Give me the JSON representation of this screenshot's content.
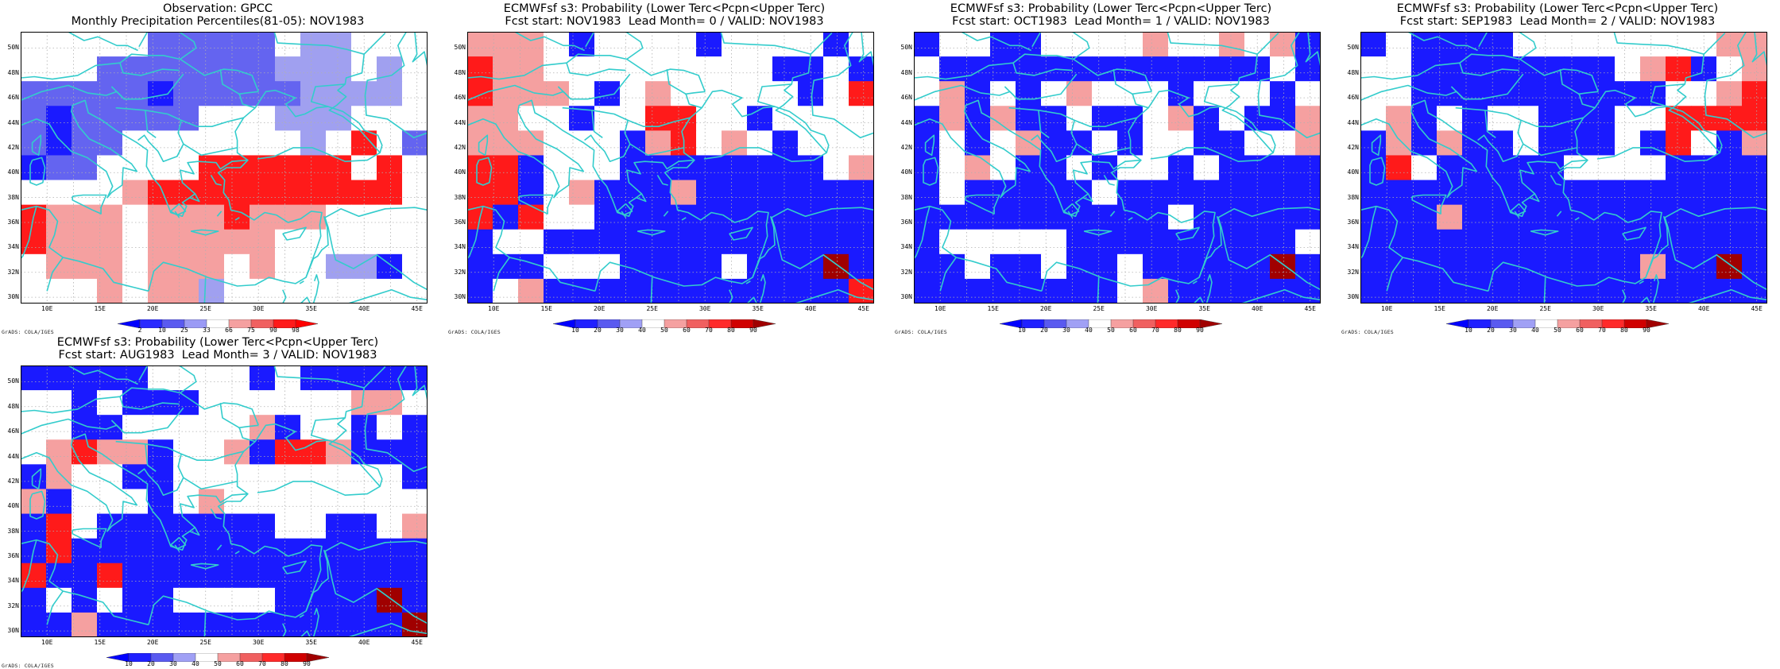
{
  "lat_labels": [
    "50N",
    "48N",
    "46N",
    "44N",
    "42N",
    "40N",
    "38N",
    "36N",
    "34N",
    "32N",
    "30N"
  ],
  "lon_labels": [
    "10E",
    "15E",
    "20E",
    "25E",
    "30E",
    "35E",
    "40E",
    "45E"
  ],
  "credit": "GrADS: COLA/IGES",
  "colors": {
    "coast": "#33cccc",
    "grid": "#b0b0b0",
    "blue_dark": "#1a1aff",
    "blue_mid": "#6464f0",
    "blue_light": "#a0a0f0",
    "pink_light": "#f5a0a0",
    "red_mid": "#f06060",
    "red": "#ff1a1a",
    "red_dark": "#a00000"
  },
  "colorbar_obs": {
    "labels": [
      "2",
      "10",
      "25",
      "33",
      "66",
      "75",
      "90",
      "98"
    ],
    "colors": [
      "#0000ff",
      "#2a2aff",
      "#5a5af0",
      "#9a9af5",
      "#ffffff",
      "#f5a0a0",
      "#f06060",
      "#ff1a1a",
      "#ff0000"
    ]
  },
  "colorbar_prob": {
    "labels": [
      "10",
      "20",
      "30",
      "40",
      "50",
      "60",
      "70",
      "80",
      "90"
    ],
    "colors": [
      "#0000ff",
      "#2020ff",
      "#5a5af0",
      "#a0a0f5",
      "#ffffff",
      "#f5a0a0",
      "#f06060",
      "#ff2a2a",
      "#d00000",
      "#a00000"
    ]
  },
  "panels": [
    {
      "title1": "Observation: GPCC",
      "title2": "Monthly Precipitation Percentiles(81-05): NOV1983",
      "bar": "obs"
    },
    {
      "title1": "ECMWFsf s3: Probability (Lower Terc<Pcpn<Upper Terc)",
      "title2": "Fcst start: NOV1983  Lead Month= 0 / VALID: NOV1983",
      "bar": "prob"
    },
    {
      "title1": "ECMWFsf s3: Probability (Lower Terc<Pcpn<Upper Terc)",
      "title2": "Fcst start: OCT1983  Lead Month= 1 / VALID: NOV1983",
      "bar": "prob"
    },
    {
      "title1": "ECMWFsf s3: Probability (Lower Terc<Pcpn<Upper Terc)",
      "title2": "Fcst start: SEP1983  Lead Month= 2 / VALID: NOV1983",
      "bar": "prob"
    },
    {
      "title1": "ECMWFsf s3: Probability (Lower Terc<Pcpn<Upper Terc)",
      "title2": "Fcst start: AUG1983  Lead Month= 3 / VALID: NOV1983",
      "bar": "prob"
    }
  ],
  "grids": [
    [
      "WWWWWMMMMMWLLWWW",
      "WWWMMMMMMMLLLWLW",
      "MMMMMBMMMMMLLLLW",
      "MBMMMMMWWWLLLWWW",
      "MBMMWWWWWWWLWRWM",
      "BMMWWWWRRRRRRWRW",
      "WWWWPRRRRRRRRRRW",
      "RPPPWPPPRPPPWWWW",
      "RPPPWPPPPPWWWWWW",
      "WPPPWPPPWPWWLLBW",
      "WWWPWPPLWWWWWWWW"
    ],
    [
      "PPPWBWWWWBWWWWBW",
      "RPPWWWWWWWWWBBWB",
      "RPPPWBWPWWWWWBWR",
      "PPWWBWWRRWWBWWWW",
      "PPPWWWBPRWPWBWWW",
      "RRBWWWBBBBBBBBWP",
      "RRBWPBBBPBBBBBBB",
      "RBRWWBBBBBBBBBBB",
      "BWWBBBBBBBBBBBBB",
      "BBBWWWBBBBWBBBDB",
      "BWPBBBBBBBBBBBBR"
    ],
    [
      "BWWBBWWWWPWWPWPB",
      "WBBBBBBBBBBBBBWB",
      "WPBWBWPWWWBWWWBW",
      "BPBPBBWBBWPBWBBP",
      "BWBWPBBWBWWBBWWP",
      "BWPWBBWBWWBWBBBB",
      "BWBBBBBWBBBBBBBB",
      "BBBBBBBBBBWBBBBB",
      "BWWWWWBBBBBBBBBW",
      "BBWBBWBBWBBBBBDB",
      "BBBBBBBBWPBBBBBB"
    ],
    [
      "BWBBBBWWWWWWWWPP",
      "WWBBBBBBBBWPRBWP",
      "WWBBBBBBBBBBWWPR",
      "WPBWBWWBBBWWRRRR",
      "BPBPBBWBBBWBRWBP",
      "BRWBBBBBWWWWBBBB",
      "BBBBBBBBBBBBBBBB",
      "BBBPBBBBBBBBBBBB",
      "BBBBBBBBBBBBBBBB",
      "BBBBBBBBBBBPBBDB",
      "BBBBBBBBBBBBBBBB"
    ],
    [
      "BBBBBWWWWBWBBBBB",
      "WWBWBBBWWWWWWPPW",
      "WWBBWWWWWPBWWBWB",
      "WPRPPBWWPBRRPBBB",
      "BPWWBBWWWWWWWWWB",
      "PBWWWBWPWWWWWWWW",
      "BRWBBBBBBBWWBBWP",
      "BRBBBBBBBBBBBBBB",
      "RBBRBBBBBBBBBBBB",
      "BWBWBBWWWWBBBBDB",
      "BBPBBBBBBBBBBBBD"
    ]
  ]
}
